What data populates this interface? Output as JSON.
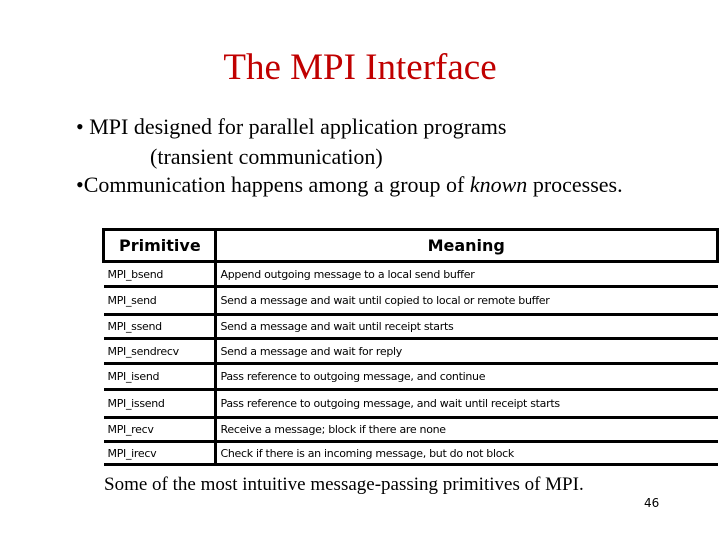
{
  "title": "The MPI Interface",
  "bullets": [
    {
      "line1": "• MPI designed for parallel application programs",
      "line2": "(transient communication)"
    },
    {
      "before": "•Communication happens among a group of",
      "emphasis": "known",
      "after": "processes."
    }
  ],
  "table": {
    "header": [
      "Primitive",
      "Meaning"
    ],
    "rows": [
      [
        "MPI_bsend",
        "Append outgoing message to a local send buffer"
      ],
      [
        "MPI_send",
        "Send a message and wait until copied to local or remote buffer"
      ],
      [
        "MPI_ssend",
        "Send a message and wait until receipt starts"
      ],
      [
        "MPI_sendrecv",
        "Send a message and wait for reply"
      ],
      [
        "MPI_isend",
        "Pass reference to outgoing message, and continue"
      ],
      [
        "MPI_issend",
        "Pass reference to outgoing message, and wait until receipt starts"
      ],
      [
        "MPI_recv",
        "Receive a message; block if there are none"
      ],
      [
        "MPI_irecv",
        "Check if there is an incoming message, but do not block"
      ]
    ]
  },
  "caption": "Some of the most intuitive message-passing primitives of MPI.",
  "page_number": "46"
}
